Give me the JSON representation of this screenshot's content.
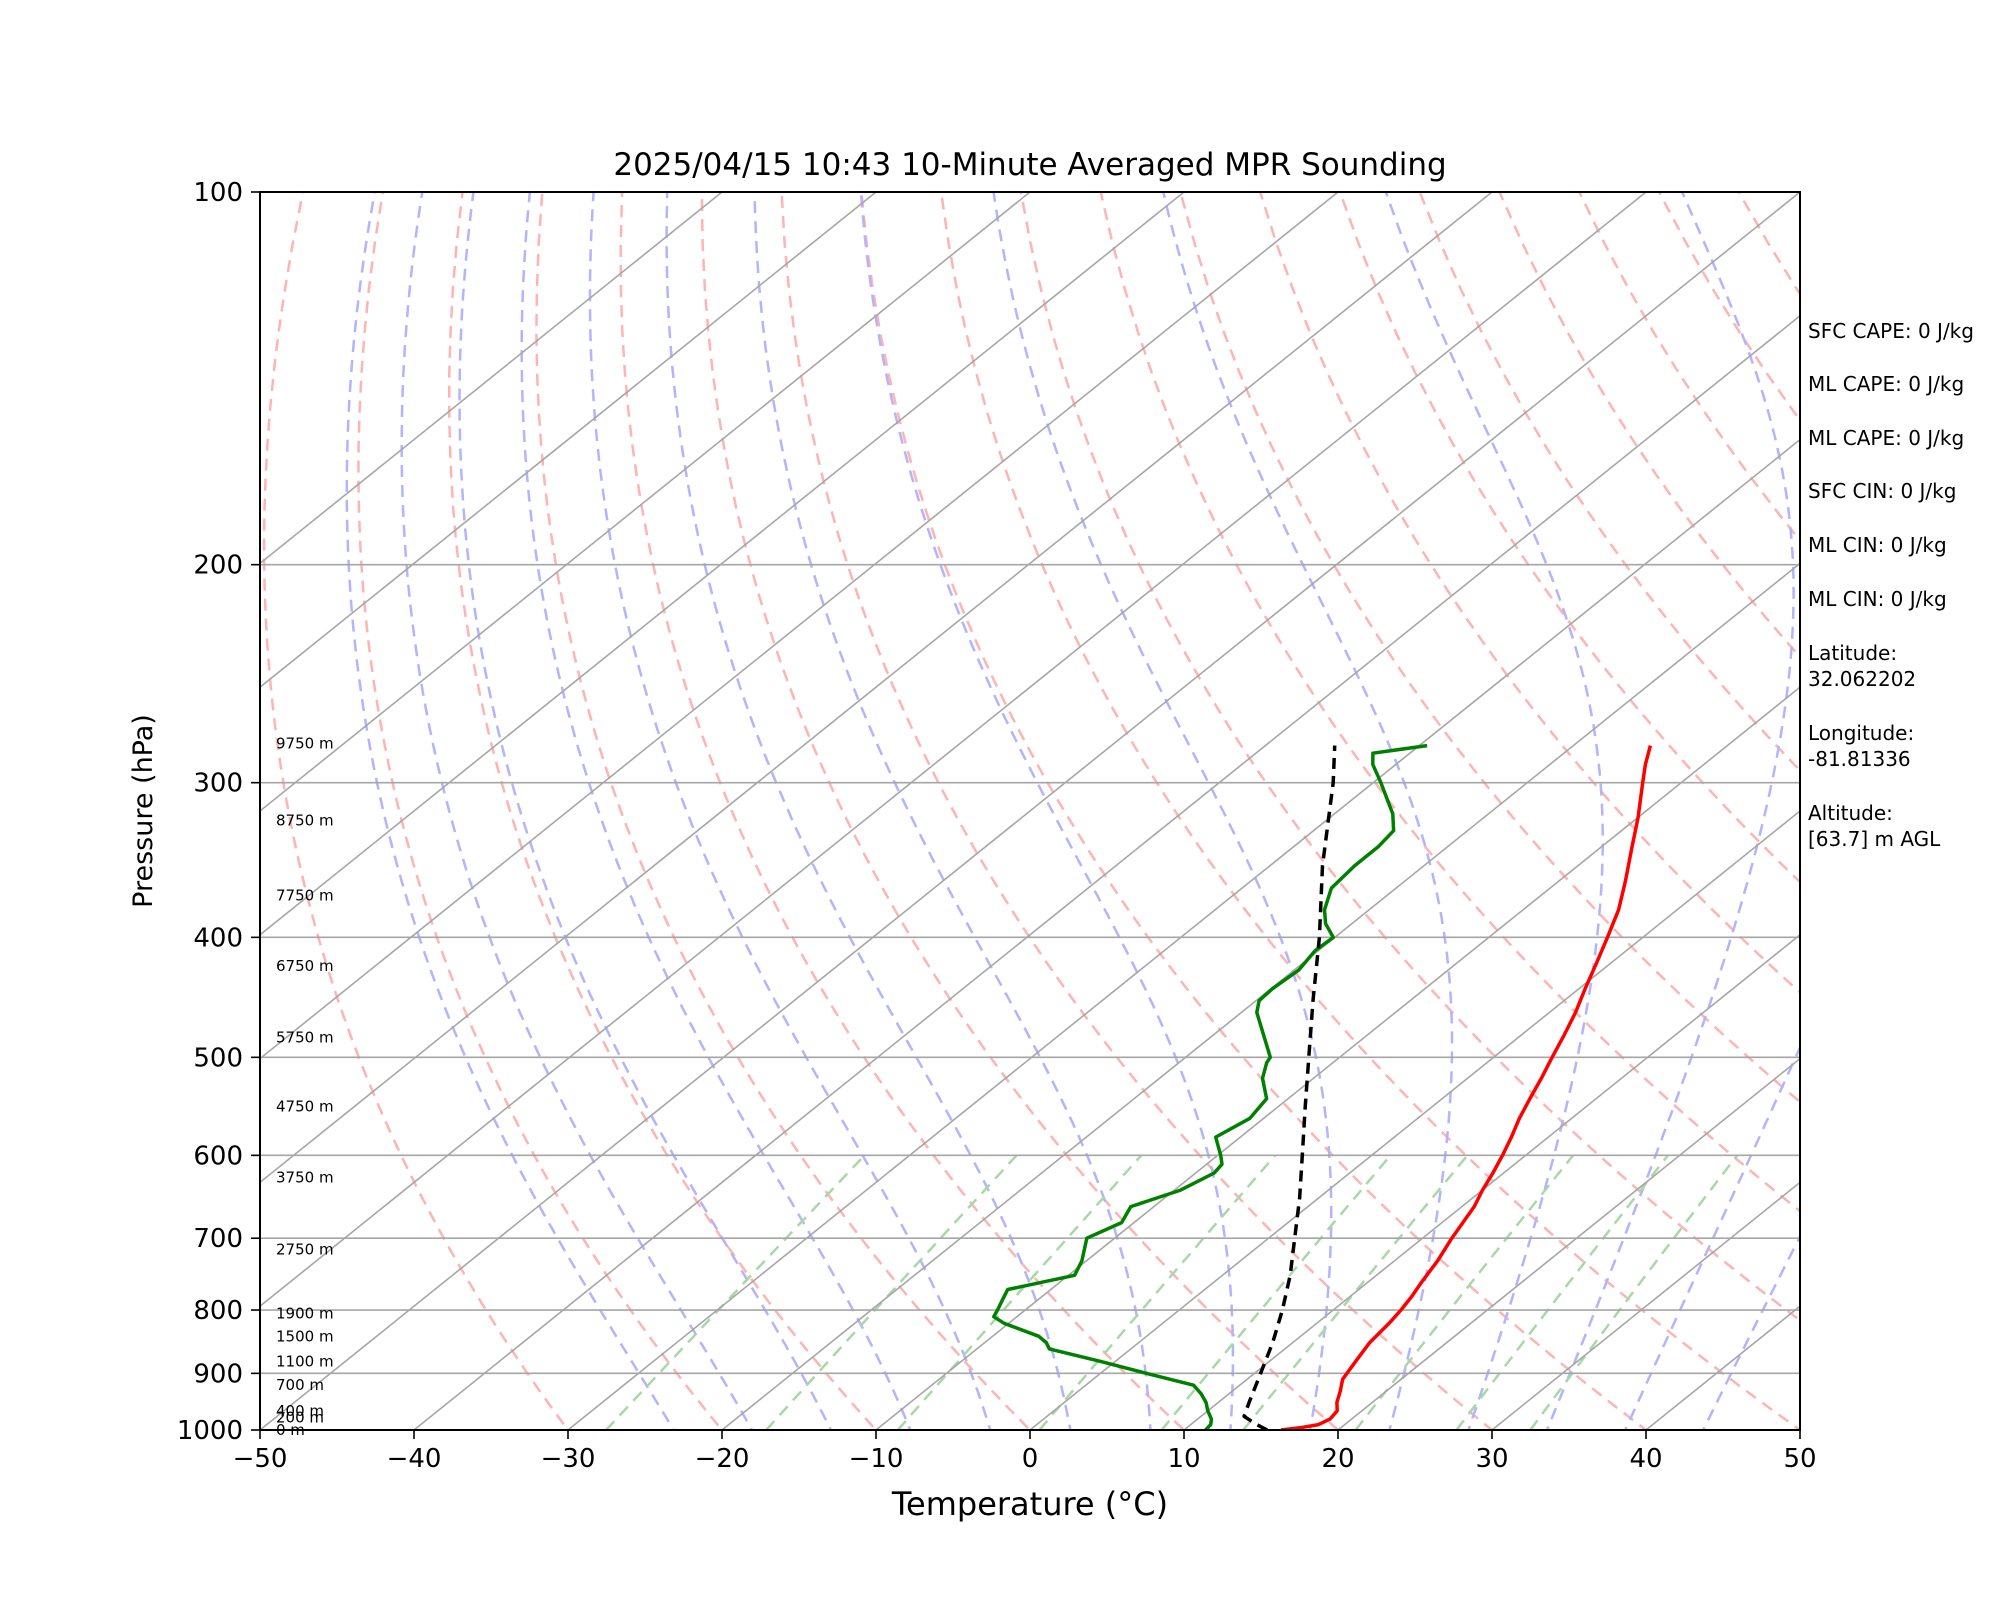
{
  "chart_data": {
    "type": "skew-t",
    "title": "2025/04/15 10:43 10-Minute Averaged MPR Sounding",
    "xlabel": "Temperature (°C)",
    "ylabel": "Pressure (hPa)",
    "xlim": [
      -50,
      50
    ],
    "ylim": [
      1000,
      100
    ],
    "y_scale": "log",
    "x_ticks": [
      "−50",
      "−40",
      "−30",
      "−20",
      "−10",
      "0",
      "10",
      "20",
      "30",
      "40",
      "50"
    ],
    "y_ticks": [
      "100",
      "200",
      "300",
      "400",
      "500",
      "600",
      "700",
      "800",
      "900",
      "1000"
    ],
    "grid": true,
    "skew_deg_per_log_p": 100,
    "height_labels": [
      {
        "p": 1000,
        "label": "0 m"
      },
      {
        "p": 977,
        "label": "200 m"
      },
      {
        "p": 965,
        "label": "400 m"
      },
      {
        "p": 920,
        "label": "700 m"
      },
      {
        "p": 880,
        "label": "1100 m"
      },
      {
        "p": 840,
        "label": "1500 m"
      },
      {
        "p": 805,
        "label": "1900 m"
      },
      {
        "p": 715,
        "label": "2750 m"
      },
      {
        "p": 625,
        "label": "3750 m"
      },
      {
        "p": 548,
        "label": "4750 m"
      },
      {
        "p": 482,
        "label": "5750 m"
      },
      {
        "p": 422,
        "label": "6750 m"
      },
      {
        "p": 370,
        "label": "7750 m"
      },
      {
        "p": 322,
        "label": "8750 m"
      },
      {
        "p": 279,
        "label": "9750 m"
      }
    ],
    "series": [
      {
        "role": "temperature",
        "color": "#ff0000",
        "points": [
          [
            1000,
            16.3
          ],
          [
            995,
            17.5
          ],
          [
            990,
            18.3
          ],
          [
            980,
            18.6
          ],
          [
            965,
            18.4
          ],
          [
            950,
            17.7
          ],
          [
            930,
            17.0
          ],
          [
            910,
            16.2
          ],
          [
            880,
            15.6
          ],
          [
            850,
            15.0
          ],
          [
            820,
            14.7
          ],
          [
            800,
            14.4
          ],
          [
            780,
            14.0
          ],
          [
            760,
            13.5
          ],
          [
            730,
            12.8
          ],
          [
            700,
            11.9
          ],
          [
            660,
            10.8
          ],
          [
            640,
            10.0
          ],
          [
            620,
            9.3
          ],
          [
            600,
            8.5
          ],
          [
            580,
            7.6
          ],
          [
            560,
            6.6
          ],
          [
            540,
            5.7
          ],
          [
            520,
            4.8
          ],
          [
            500,
            3.8
          ],
          [
            480,
            2.8
          ],
          [
            460,
            1.7
          ],
          [
            440,
            0.4
          ],
          [
            420,
            -0.9
          ],
          [
            400,
            -2.3
          ],
          [
            380,
            -3.8
          ],
          [
            360,
            -5.7
          ],
          [
            340,
            -7.8
          ],
          [
            320,
            -10.0
          ],
          [
            300,
            -12.5
          ],
          [
            290,
            -13.8
          ],
          [
            280,
            -15.0
          ]
        ]
      },
      {
        "role": "dewpoint",
        "color": "#008000",
        "points": [
          [
            1000,
            11.4
          ],
          [
            990,
            11.3
          ],
          [
            980,
            10.9
          ],
          [
            965,
            10.0
          ],
          [
            950,
            9.2
          ],
          [
            935,
            8.2
          ],
          [
            920,
            7.0
          ],
          [
            900,
            3.0
          ],
          [
            880,
            -1.0
          ],
          [
            860,
            -5.3
          ],
          [
            850,
            -6.0
          ],
          [
            840,
            -7.0
          ],
          [
            820,
            -10.3
          ],
          [
            810,
            -11.5
          ],
          [
            800,
            -11.8
          ],
          [
            785,
            -12.3
          ],
          [
            770,
            -12.8
          ],
          [
            750,
            -9.6
          ],
          [
            730,
            -10.3
          ],
          [
            700,
            -11.8
          ],
          [
            680,
            -10.8
          ],
          [
            660,
            -11.5
          ],
          [
            640,
            -9.6
          ],
          [
            620,
            -8.8
          ],
          [
            610,
            -9.0
          ],
          [
            600,
            -9.8
          ],
          [
            580,
            -11.6
          ],
          [
            560,
            -10.9
          ],
          [
            540,
            -11.4
          ],
          [
            520,
            -13.3
          ],
          [
            505,
            -14.3
          ],
          [
            500,
            -14.5
          ],
          [
            480,
            -16.7
          ],
          [
            460,
            -19.0
          ],
          [
            450,
            -19.8
          ],
          [
            440,
            -19.9
          ],
          [
            425,
            -19.7
          ],
          [
            410,
            -20.2
          ],
          [
            400,
            -20.1
          ],
          [
            390,
            -21.7
          ],
          [
            380,
            -22.9
          ],
          [
            365,
            -24.2
          ],
          [
            350,
            -24.5
          ],
          [
            338,
            -24.5
          ],
          [
            328,
            -24.8
          ],
          [
            318,
            -26.2
          ],
          [
            300,
            -29.5
          ],
          [
            290,
            -31.5
          ],
          [
            284,
            -32.4
          ],
          [
            280,
            -29.5
          ]
        ]
      },
      {
        "role": "parcel",
        "color": "#000000",
        "points": [
          [
            1000,
            15.4
          ],
          [
            990,
            14.3
          ],
          [
            975,
            12.8
          ],
          [
            950,
            12.0
          ],
          [
            900,
            10.4
          ],
          [
            850,
            8.7
          ],
          [
            800,
            6.7
          ],
          [
            750,
            4.4
          ],
          [
            700,
            1.7
          ],
          [
            650,
            -1.2
          ],
          [
            600,
            -4.5
          ],
          [
            550,
            -8.1
          ],
          [
            500,
            -12.0
          ],
          [
            450,
            -16.3
          ],
          [
            400,
            -21.0
          ],
          [
            350,
            -26.6
          ],
          [
            300,
            -32.6
          ],
          [
            280,
            -35.5
          ]
        ]
      }
    ],
    "annotations": [
      "SFC CAPE: 0 J/kg",
      "ML CAPE: 0 J/kg",
      "ML CAPE: 0 J/kg",
      "SFC CIN: 0 J/kg",
      "ML CIN: 0 J/kg",
      "ML CIN: 0 J/kg",
      "Latitude:\n32.062202",
      "Longitude:\n-81.81336",
      "Altitude:\n[63.7] m AGL"
    ],
    "background_lines": {
      "isotherm_color": "#a6a6a6",
      "dry_adiabat_color": "#ffb3b3",
      "moist_adiabat_color": "#b3b3ff",
      "mixing_ratio_color": "#a6d9a6"
    }
  }
}
